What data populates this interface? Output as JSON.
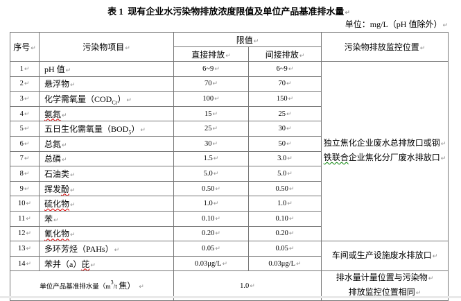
{
  "meta": {
    "paragraph_mark": "↵",
    "colors": {
      "spellcheck_underline": "#dd0000",
      "grammar_underline": "#008000",
      "table_border": "#757575",
      "paragraph_mark_gray": "#8f8f8f"
    }
  },
  "title": "表 1  现有企业水污染物排放浓度限值及单位产品基准排水量",
  "unit_note": "单位：mg/L（pH 值除外）",
  "table": {
    "headers": {
      "index": "序号",
      "pollutant": "污染物项目",
      "limit": "限值",
      "direct": "直接排放",
      "indirect": "间接排放",
      "monitoring": "污染物排放监控位置"
    },
    "rows": [
      {
        "no": "1",
        "name_pre": "pH 值",
        "direct": "6~9",
        "indirect": "6~9"
      },
      {
        "no": "2",
        "name_pre": "悬浮物",
        "direct": "70",
        "indirect": "70"
      },
      {
        "no": "3",
        "name_pre": "化学需氧量（COD",
        "name_sub": "Cr",
        "name_post": "）",
        "direct": "100",
        "indirect": "150"
      },
      {
        "no": "4",
        "name_wavy": "氨氮",
        "direct": "15",
        "indirect": "25"
      },
      {
        "no": "5",
        "name_pre": "五日生化需氧量（BOD",
        "name_sub": "5",
        "name_post": "）",
        "direct": "25",
        "indirect": "30"
      },
      {
        "no": "6",
        "name_pre": "总氮",
        "direct": "30",
        "indirect": "50"
      },
      {
        "no": "7",
        "name_pre": "总磷",
        "direct": "1.5",
        "indirect": "3.0"
      },
      {
        "no": "8",
        "name_pre": "石油类",
        "direct": "5.0",
        "indirect": "5.0"
      },
      {
        "no": "9",
        "name_pre": "挥发",
        "name_wavy": "酚",
        "direct": "0.50",
        "indirect": "0.50"
      },
      {
        "no": "10",
        "name_wavy": "硫化物",
        "direct": "1.0",
        "indirect": "1.0"
      },
      {
        "no": "11",
        "name_pre": "苯",
        "direct": "0.10",
        "indirect": "0.10"
      },
      {
        "no": "12",
        "name_wavy": "氰化物",
        "direct": "0.20",
        "indirect": "0.20"
      },
      {
        "no": "13",
        "name_pre": "多环芳烃（PAHs）",
        "direct": "0.05",
        "indirect": "0.05"
      },
      {
        "no": "14",
        "name_pre": "苯并（a）",
        "name_wavy": "芘",
        "direct": "0.03μg/L",
        "indirect": "0.03μg/L"
      }
    ],
    "monitoring": {
      "span_1_12": {
        "line1": "独立焦化企业废水总排放口或钢",
        "line2_wavy": "铁联合",
        "line2_rest": "企业焦化分厂废水排放口"
      },
      "span_13_14": "车间或生产设施废水排放口",
      "footer_line1": "排水量计量位置与污染物",
      "footer_line2": "排放监控位置相同"
    },
    "footer": {
      "label_small": "单位产品基准排水量（m",
      "label_sup": "3",
      "label_mid": "/t ",
      "label_big": "焦）",
      "value": "1.0"
    }
  }
}
